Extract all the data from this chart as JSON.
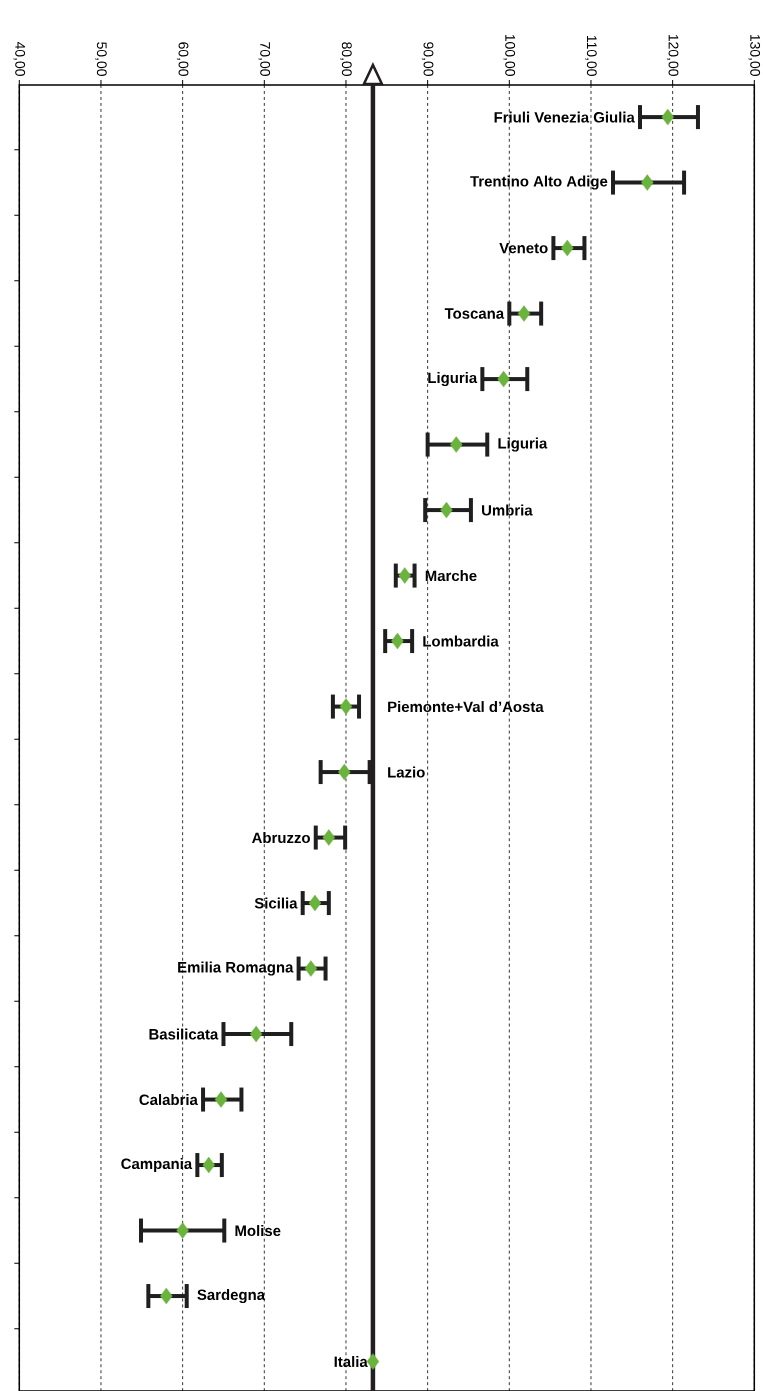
{
  "chart_data": {
    "type": "scatter",
    "orientation": "horizontal",
    "categories": [
      "Friuli Venezia Giulia",
      "Trentino Alto Adige",
      "Veneto",
      "Toscana",
      "Liguria",
      "Liguria",
      "Umbria",
      "Marche",
      "Lombardia",
      "Piemonte+Val d’Aosta",
      "Lazio",
      "Abruzzo",
      "Sicilia",
      "Emilia Romagna",
      "Basilicata",
      "Calabria",
      "Campania",
      "Molise",
      "Sardegna",
      "Italia"
    ],
    "values": [
      119.4,
      116.9,
      107.1,
      101.8,
      99.3,
      93.5,
      92.3,
      87.2,
      86.3,
      80.0,
      79.8,
      77.9,
      76.2,
      75.7,
      69.0,
      64.7,
      63.2,
      60.0,
      58.0,
      83.3
    ],
    "errors": [
      [
        116.0,
        123.1
      ],
      [
        112.7,
        121.4
      ],
      [
        105.4,
        109.2
      ],
      [
        100.0,
        103.9
      ],
      [
        96.7,
        102.2
      ],
      [
        90.0,
        97.3
      ],
      [
        89.7,
        95.3
      ],
      [
        86.1,
        88.4
      ],
      [
        84.8,
        88.1
      ],
      [
        78.4,
        81.6
      ],
      [
        76.9,
        82.9
      ],
      [
        76.3,
        79.9
      ],
      [
        74.7,
        77.9
      ],
      [
        74.2,
        77.5
      ],
      [
        65.0,
        73.3
      ],
      [
        62.5,
        67.2
      ],
      [
        61.8,
        64.8
      ],
      [
        54.9,
        65.1
      ],
      [
        55.8,
        60.5
      ],
      null
    ],
    "color": "#6ab43e",
    "marker": "diamond",
    "xlim": [
      40,
      130
    ],
    "xticks": [
      {
        "value": 40,
        "label": "40,00"
      },
      {
        "value": 50,
        "label": "50,00"
      },
      {
        "value": 60,
        "label": "60,00"
      },
      {
        "value": 70,
        "label": "70,00"
      },
      {
        "value": 80,
        "label": "80,00"
      },
      {
        "value": 90,
        "label": "90,00"
      },
      {
        "value": 100,
        "label": "100,00"
      },
      {
        "value": 110,
        "label": "110,00"
      },
      {
        "value": 120,
        "label": "120,00"
      },
      {
        "value": 130,
        "label": "130,00"
      }
    ],
    "grid": "x",
    "ref_lines": [
      {
        "axis": "x",
        "value": 83.3,
        "color": "#231f20"
      }
    ]
  }
}
